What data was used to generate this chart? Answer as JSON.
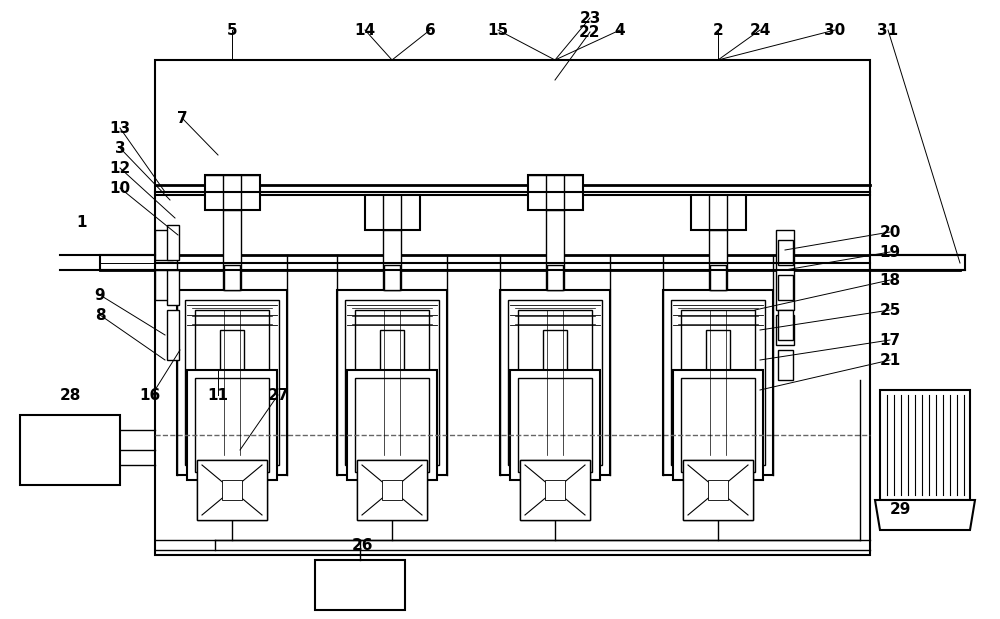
{
  "bg_color": "#ffffff",
  "line_color": "#000000",
  "fig_width": 10.0,
  "fig_height": 6.19
}
